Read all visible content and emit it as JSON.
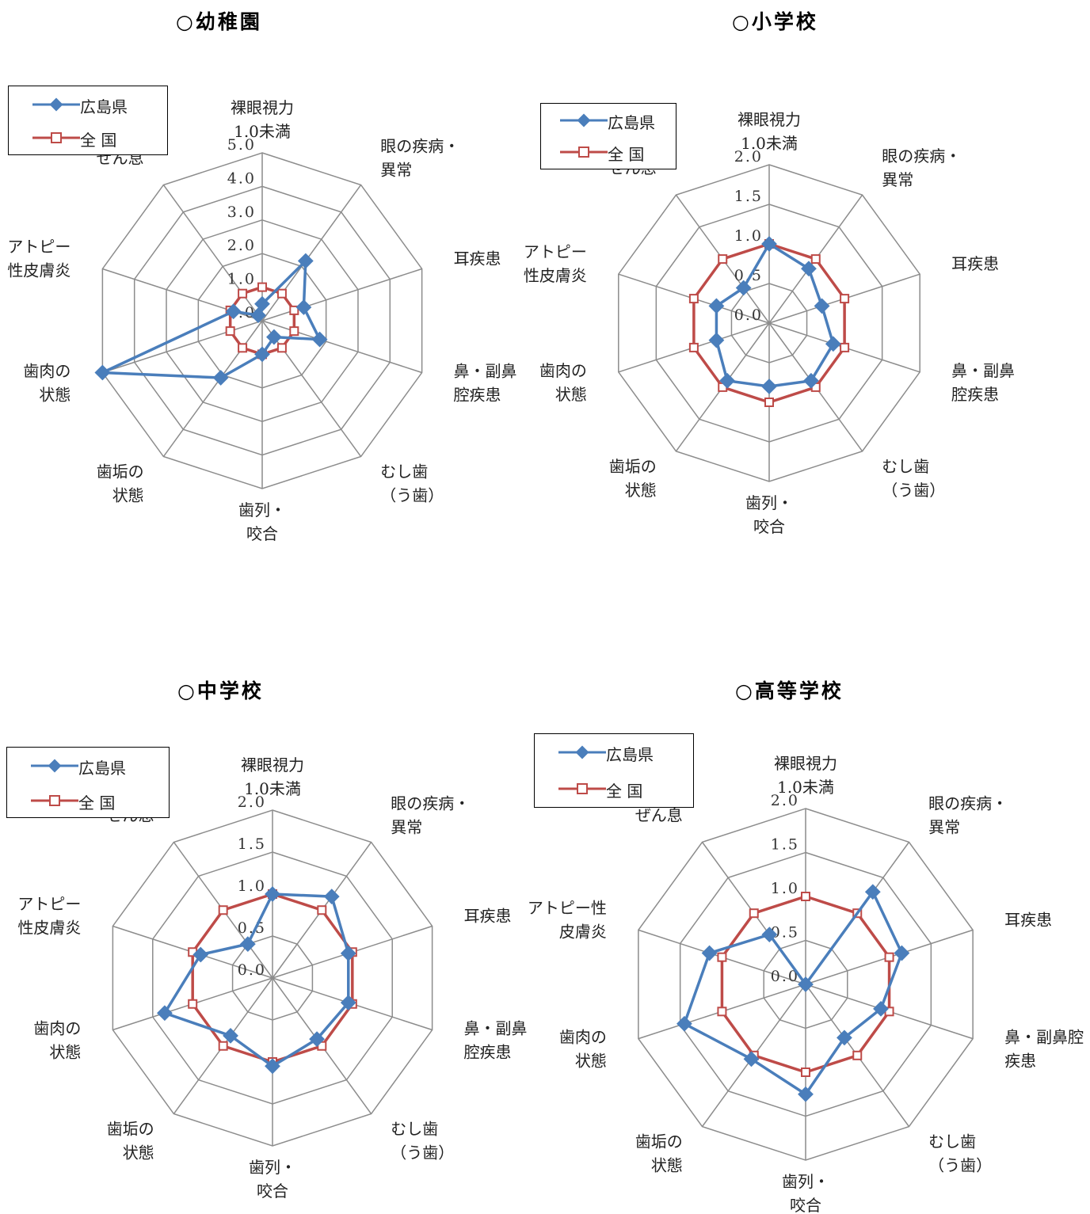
{
  "colors": {
    "hiroshima": "#4a7ebb",
    "national": "#be4b48",
    "grid": "#8c8c8c"
  },
  "legend": {
    "hiroshima": "広島県",
    "national": "全 国"
  },
  "chart_data": [
    {
      "type": "radar",
      "title": "○幼稚園",
      "categories": [
        [
          "裸眼視力",
          "1.0未満"
        ],
        [
          "眼の疾病・",
          "異常"
        ],
        [
          "耳疾患"
        ],
        [
          "鼻・副鼻",
          "腔疾患"
        ],
        [
          "むし歯",
          "（う歯）"
        ],
        [
          "歯列・",
          "咬合"
        ],
        [
          "歯垢の",
          "状態"
        ],
        [
          "歯肉の",
          "状態"
        ],
        [
          "アトピー",
          "性皮膚炎"
        ],
        [
          "ぜん息"
        ]
      ],
      "ticks": [
        "0.0",
        "1.0",
        "2.0",
        "3.0",
        "4.0",
        "5.0"
      ],
      "rmax": 5,
      "series": [
        {
          "name": "広島県",
          "values": [
            0.5,
            2.2,
            1.3,
            1.8,
            0.6,
            1.0,
            2.1,
            5.0,
            0.9,
            0.2
          ]
        },
        {
          "name": "全 国",
          "values": [
            1.0,
            1.0,
            1.0,
            1.0,
            1.0,
            1.0,
            1.0,
            1.0,
            1.0,
            1.0
          ]
        }
      ]
    },
    {
      "type": "radar",
      "title": "○小学校",
      "categories": [
        [
          "裸眼視力",
          "1.0未満"
        ],
        [
          "眼の疾病・",
          "異常"
        ],
        [
          "耳疾患"
        ],
        [
          "鼻・副鼻",
          "腔疾患"
        ],
        [
          "むし歯",
          "（う歯）"
        ],
        [
          "歯列・",
          "咬合"
        ],
        [
          "歯垢の",
          "状態"
        ],
        [
          "歯肉の",
          "状態"
        ],
        [
          "アトピー",
          "性皮膚炎"
        ],
        [
          "ぜん息"
        ]
      ],
      "ticks": [
        "0.0",
        "0.5",
        "1.0",
        "1.5",
        "2.0"
      ],
      "rmax": 2,
      "series": [
        {
          "name": "広島県",
          "values": [
            1.0,
            0.85,
            0.7,
            0.85,
            0.9,
            0.8,
            0.9,
            0.7,
            0.7,
            0.55
          ]
        },
        {
          "name": "全 国",
          "values": [
            1.0,
            1.0,
            1.0,
            1.0,
            1.0,
            1.0,
            1.0,
            1.0,
            1.0,
            1.0
          ]
        }
      ]
    },
    {
      "type": "radar",
      "title": "○中学校",
      "categories": [
        [
          "裸眼視力",
          "1.0未満"
        ],
        [
          "眼の疾病・",
          "異常"
        ],
        [
          "耳疾患"
        ],
        [
          "鼻・副鼻",
          "腔疾患"
        ],
        [
          "むし歯",
          "（う歯）"
        ],
        [
          "歯列・",
          "咬合"
        ],
        [
          "歯垢の",
          "状態"
        ],
        [
          "歯肉の",
          "状態"
        ],
        [
          "アトピー",
          "性皮膚炎"
        ],
        [
          "ぜん息"
        ]
      ],
      "ticks": [
        "0.0",
        "0.5",
        "1.0",
        "1.5",
        "2.0"
      ],
      "rmax": 2,
      "series": [
        {
          "name": "広島県",
          "values": [
            1.0,
            1.2,
            0.95,
            0.95,
            0.9,
            1.05,
            0.85,
            1.35,
            0.9,
            0.5
          ]
        },
        {
          "name": "全 国",
          "values": [
            1.0,
            1.0,
            1.0,
            1.0,
            1.0,
            1.0,
            1.0,
            1.0,
            1.0,
            1.0
          ]
        }
      ]
    },
    {
      "type": "radar",
      "title": "○高等学校",
      "categories": [
        [
          "裸眼視力",
          "1.0未満"
        ],
        [
          "眼の疾病・",
          "異常"
        ],
        [
          "耳疾患"
        ],
        [
          "鼻・副鼻腔",
          "疾患"
        ],
        [
          "むし歯",
          "（う歯）"
        ],
        [
          "歯列・",
          "咬合"
        ],
        [
          "歯垢の",
          "状態"
        ],
        [
          "歯肉の",
          "状態"
        ],
        [
          "アトピー性",
          "皮膚炎"
        ],
        [
          "ぜん息"
        ]
      ],
      "ticks": [
        "0.0",
        "0.5",
        "1.0",
        "1.5",
        "2.0"
      ],
      "rmax": 2,
      "series": [
        {
          "name": "広島県",
          "values": [
            0.0,
            1.3,
            1.15,
            0.9,
            0.75,
            1.25,
            1.05,
            1.45,
            1.15,
            0.7
          ]
        },
        {
          "name": "全 国",
          "values": [
            1.0,
            1.0,
            1.0,
            1.0,
            1.0,
            1.0,
            1.0,
            1.0,
            1.0,
            1.0
          ]
        }
      ]
    }
  ]
}
